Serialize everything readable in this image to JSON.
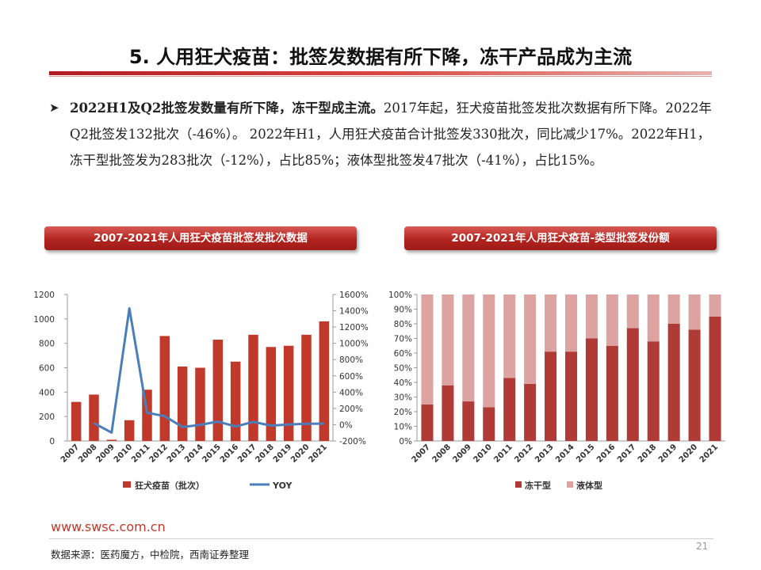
{
  "slide": {
    "title": "5. 人用狂犬疫苗：批签发数据有所下降，冻干产品成为主流",
    "bullet_bold": "2022H1及Q2批签发数量有所下降，冻干型成主流。",
    "bullet_rest": "2017年起，狂犬疫苗批签发批次数据有所下降。2022年Q2批签发132批次（-46%）。 2022年H1，人用狂犬疫苗合计批签发330批次，同比减少17%。2022年H1，冻干型批签发为283批次（-12%），占比85%；液体型批签发47批次（-41%），占比15%。",
    "footer_url": "www.swsc.com.cn",
    "footer_source": "数据来源：医药魔方，中检院，西南证券整理",
    "page_number": "21",
    "colors": {
      "bar": "#c0392b",
      "line": "#4a7ebb",
      "freeze": "#b03a35",
      "liquid": "#dda3a1",
      "accent": "#b31b22"
    }
  },
  "chart_data": [
    {
      "type": "bar",
      "title": "2007-2021年人用狂犬疫苗批签发批次数据",
      "categories": [
        "2007",
        "2008",
        "2009",
        "2010",
        "2011",
        "2012",
        "2013",
        "2014",
        "2015",
        "2016",
        "2017",
        "2018",
        "2019",
        "2020",
        "2021"
      ],
      "series": [
        {
          "name": "狂犬疫苗（批次）",
          "type": "bar",
          "axis": "left",
          "values": [
            320,
            380,
            10,
            170,
            420,
            860,
            610,
            600,
            830,
            650,
            870,
            770,
            780,
            870,
            980
          ]
        },
        {
          "name": "YOY",
          "type": "line",
          "axis": "right",
          "values": [
            null,
            19,
            -97,
            1430,
            147,
            105,
            -29,
            -2,
            38,
            -22,
            34,
            -11,
            1,
            12,
            13
          ]
        }
      ],
      "y_left": {
        "ticks": [
          "0",
          "200",
          "400",
          "600",
          "800",
          "1000",
          "1200"
        ],
        "lim": [
          0,
          1200
        ]
      },
      "y_right": {
        "ticks": [
          "-200%",
          "0%",
          "200%",
          "400%",
          "600%",
          "800%",
          "1000%",
          "1200%",
          "1400%",
          "1600%"
        ],
        "lim": [
          -200,
          1600
        ]
      },
      "legend_position": "bottom"
    },
    {
      "type": "bar",
      "stacked": true,
      "title": "2007-2021年人用狂犬疫苗-类型批签发份额",
      "categories": [
        "2007",
        "2008",
        "2009",
        "2010",
        "2011",
        "2012",
        "2013",
        "2014",
        "2015",
        "2016",
        "2017",
        "2018",
        "2019",
        "2020",
        "2021"
      ],
      "series": [
        {
          "name": "冻干型",
          "values": [
            25,
            38,
            27,
            23,
            43,
            39,
            61,
            61,
            70,
            65,
            77,
            68,
            80,
            76,
            85
          ]
        },
        {
          "name": "液体型",
          "values": [
            75,
            62,
            73,
            77,
            57,
            61,
            39,
            39,
            30,
            35,
            23,
            32,
            20,
            24,
            15
          ]
        }
      ],
      "y": {
        "ticks": [
          "0%",
          "10%",
          "20%",
          "30%",
          "40%",
          "50%",
          "60%",
          "70%",
          "80%",
          "90%",
          "100%"
        ],
        "lim": [
          0,
          100
        ]
      },
      "legend_position": "bottom"
    }
  ]
}
